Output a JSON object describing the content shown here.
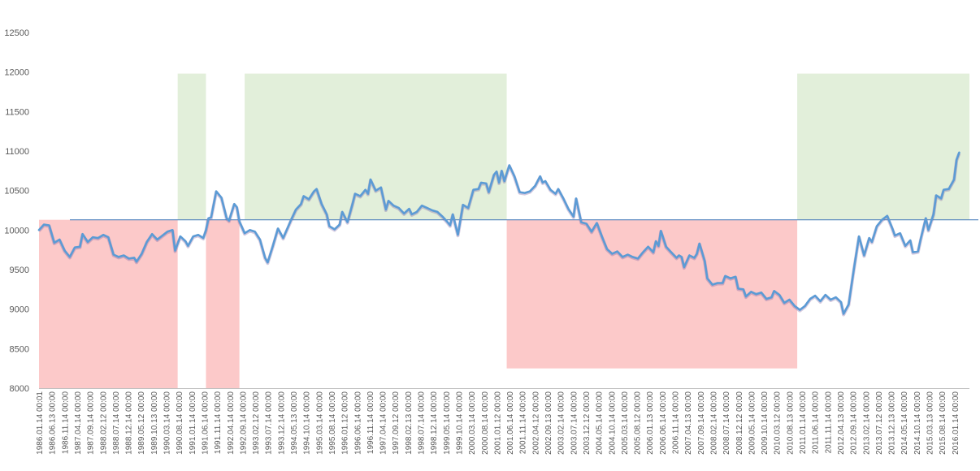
{
  "chart_data": {
    "type": "line",
    "title": "",
    "xlabel": "",
    "ylabel": "",
    "ylim": [
      8000,
      12500
    ],
    "yticks": [
      8000,
      8500,
      9000,
      9500,
      10000,
      10500,
      11000,
      11500,
      12000,
      12500
    ],
    "x_range": [
      "1986.01.14",
      "2016.03.14"
    ],
    "x_tick_labels": [
      "1986.01.14 00:01",
      "1986.06.13 00:00",
      "1986.11.14 00:00",
      "1987.04.14 00:00",
      "1987.09.14 00:00",
      "1988.02.12 00:00",
      "1988.07.14 00:00",
      "1988.12.14 00:00",
      "1989.05.12 00:00",
      "1989.10.13 00:00",
      "1990.03.14 00:00",
      "1990.08.14 00:00",
      "1991.01.14 00:00",
      "1991.06.14 00:00",
      "1991.11.14 00:00",
      "1992.04.14 00:00",
      "1992.09.14 00:00",
      "1993.02.12 00:00",
      "1993.07.14 00:00",
      "1993.12.14 00:00",
      "1994.05.13 00:00",
      "1994.10.14 00:00",
      "1995.03.14 00:00",
      "1995.08.14 00:00",
      "1996.01.12 00:00",
      "1996.06.14 00:00",
      "1996.11.14 00:00",
      "1997.04.14 00:00",
      "1997.09.12 00:00",
      "1998.02.13 00:00",
      "1998.07.14 00:00",
      "1998.12.14 00:00",
      "1999.05.14 00:00",
      "1999.10.14 00:00",
      "2000.03.14 00:00",
      "2000.08.14 00:00",
      "2001.01.12 00:00",
      "2001.06.14 00:00",
      "2001.11.14 00:00",
      "2002.04.12 00:00",
      "2002.09.13 00:00",
      "2003.02.14 00:00",
      "2003.07.14 00:00",
      "2003.12.12 00:00",
      "2004.05.14 00:00",
      "2004.10.14 00:00",
      "2005.03.14 00:00",
      "2005.08.12 00:00",
      "2006.01.13 00:00",
      "2006.06.14 00:00",
      "2006.11.14 00:00",
      "2007.04.13 00:00",
      "2007.09.14 00:00",
      "2008.02.14 00:00",
      "2008.07.14 00:00",
      "2008.12.12 00:00",
      "2009.05.14 00:00",
      "2009.10.14 00:00",
      "2010.03.12 00:00",
      "2010.08.13 00:00",
      "2011.01.14 00:00",
      "2011.06.14 00:00",
      "2011.11.14 00:00",
      "2012.04.13 00:00",
      "2012.09.14 00:00",
      "2013.02.14 00:00",
      "2013.07.12 00:00",
      "2013.12.13 00:00",
      "2014.05.14 00:00",
      "2014.10.14 00:00",
      "2015.03.13 00:00",
      "2015.08.14 00:00",
      "2016.01.14 00:00"
    ],
    "reference_line": {
      "y": 10130
    },
    "shaded_regions": [
      {
        "kind": "below",
        "x_start": "1986.01.14",
        "x_end": "1990.07.14",
        "y_from": 8000,
        "y_to": 10130
      },
      {
        "kind": "above",
        "x_start": "1990.07.14",
        "x_end": "1991.06.14",
        "y_from": 10130,
        "y_to": 11980
      },
      {
        "kind": "below",
        "x_start": "1991.06.14",
        "x_end": "1992.07.14",
        "y_from": 8000,
        "y_to": 10130
      },
      {
        "kind": "above",
        "x_start": "1992.09.14",
        "x_end": "2001.03.14",
        "y_from": 10130,
        "y_to": 11980
      },
      {
        "kind": "below",
        "x_start": "2001.03.14",
        "x_end": "2010.08.14",
        "y_from": 8250,
        "y_to": 10130
      },
      {
        "kind": "above",
        "x_start": "2010.08.14",
        "x_end": "2016.03.14",
        "y_from": 10130,
        "y_to": 11980
      }
    ],
    "series": [
      {
        "values": [
          [
            "1986.01.14",
            10000
          ],
          [
            "1986.03.14",
            10070
          ],
          [
            "1986.05.14",
            10060
          ],
          [
            "1986.07.14",
            9840
          ],
          [
            "1986.09.14",
            9880
          ],
          [
            "1986.11.14",
            9740
          ],
          [
            "1987.01.14",
            9660
          ],
          [
            "1987.03.14",
            9780
          ],
          [
            "1987.05.14",
            9790
          ],
          [
            "1987.06.14",
            9950
          ],
          [
            "1987.08.14",
            9850
          ],
          [
            "1987.10.14",
            9910
          ],
          [
            "1987.12.14",
            9900
          ],
          [
            "1988.02.14",
            9940
          ],
          [
            "1988.04.14",
            9910
          ],
          [
            "1988.06.14",
            9690
          ],
          [
            "1988.08.14",
            9660
          ],
          [
            "1988.10.14",
            9680
          ],
          [
            "1988.12.14",
            9640
          ],
          [
            "1989.02.14",
            9650
          ],
          [
            "1989.03.14",
            9600
          ],
          [
            "1989.05.14",
            9700
          ],
          [
            "1989.07.14",
            9850
          ],
          [
            "1989.09.14",
            9950
          ],
          [
            "1989.11.14",
            9880
          ],
          [
            "1990.01.14",
            9930
          ],
          [
            "1990.03.14",
            9980
          ],
          [
            "1990.05.14",
            10000
          ],
          [
            "1990.06.14",
            9740
          ],
          [
            "1990.08.14",
            9920
          ],
          [
            "1990.10.14",
            9860
          ],
          [
            "1990.11.14",
            9800
          ],
          [
            "1991.01.14",
            9920
          ],
          [
            "1991.03.14",
            9940
          ],
          [
            "1991.05.14",
            9900
          ],
          [
            "1991.06.14",
            10000
          ],
          [
            "1991.07.14",
            10150
          ],
          [
            "1991.08.14",
            10160
          ],
          [
            "1991.10.14",
            10490
          ],
          [
            "1991.12.14",
            10410
          ],
          [
            "1992.02.14",
            10150
          ],
          [
            "1992.03.14",
            10120
          ],
          [
            "1992.05.14",
            10330
          ],
          [
            "1992.06.14",
            10290
          ],
          [
            "1992.07.14",
            10110
          ],
          [
            "1992.09.14",
            9960
          ],
          [
            "1992.11.14",
            10000
          ],
          [
            "1993.01.14",
            9980
          ],
          [
            "1993.03.14",
            9880
          ],
          [
            "1993.05.14",
            9650
          ],
          [
            "1993.06.14",
            9590
          ],
          [
            "1993.08.14",
            9800
          ],
          [
            "1993.10.14",
            10020
          ],
          [
            "1993.12.14",
            9900
          ],
          [
            "1994.02.14",
            10050
          ],
          [
            "1994.03.14",
            10120
          ],
          [
            "1994.05.14",
            10260
          ],
          [
            "1994.07.14",
            10330
          ],
          [
            "1994.08.14",
            10430
          ],
          [
            "1994.10.14",
            10390
          ],
          [
            "1994.12.14",
            10490
          ],
          [
            "1995.01.14",
            10520
          ],
          [
            "1995.03.14",
            10330
          ],
          [
            "1995.05.14",
            10200
          ],
          [
            "1995.06.14",
            10050
          ],
          [
            "1995.08.14",
            10010
          ],
          [
            "1995.10.14",
            10070
          ],
          [
            "1995.11.14",
            10230
          ],
          [
            "1996.01.14",
            10100
          ],
          [
            "1996.03.14",
            10330
          ],
          [
            "1996.04.14",
            10460
          ],
          [
            "1996.06.14",
            10430
          ],
          [
            "1996.08.14",
            10510
          ],
          [
            "1996.09.14",
            10460
          ],
          [
            "1996.10.14",
            10640
          ],
          [
            "1996.12.14",
            10500
          ],
          [
            "1997.02.14",
            10540
          ],
          [
            "1997.04.14",
            10260
          ],
          [
            "1997.05.14",
            10370
          ],
          [
            "1997.07.14",
            10310
          ],
          [
            "1997.09.14",
            10280
          ],
          [
            "1997.11.14",
            10210
          ],
          [
            "1998.01.14",
            10270
          ],
          [
            "1998.02.14",
            10200
          ],
          [
            "1998.04.14",
            10230
          ],
          [
            "1998.06.14",
            10310
          ],
          [
            "1998.08.14",
            10280
          ],
          [
            "1998.10.14",
            10250
          ],
          [
            "1998.12.14",
            10230
          ],
          [
            "1999.02.14",
            10170
          ],
          [
            "1999.04.14",
            10100
          ],
          [
            "1999.05.14",
            10060
          ],
          [
            "1999.06.14",
            10200
          ],
          [
            "1999.08.14",
            9940
          ],
          [
            "1999.10.14",
            10320
          ],
          [
            "1999.12.14",
            10280
          ],
          [
            "2000.02.14",
            10510
          ],
          [
            "2000.04.14",
            10520
          ],
          [
            "2000.05.14",
            10600
          ],
          [
            "2000.07.14",
            10590
          ],
          [
            "2000.08.14",
            10480
          ],
          [
            "2000.10.14",
            10700
          ],
          [
            "2000.11.14",
            10740
          ],
          [
            "2000.12.14",
            10600
          ],
          [
            "2001.01.14",
            10750
          ],
          [
            "2001.02.14",
            10620
          ],
          [
            "2001.04.14",
            10820
          ],
          [
            "2001.06.14",
            10680
          ],
          [
            "2001.08.14",
            10480
          ],
          [
            "2001.10.14",
            10470
          ],
          [
            "2001.12.14",
            10490
          ],
          [
            "2002.02.14",
            10560
          ],
          [
            "2002.04.14",
            10680
          ],
          [
            "2002.05.14",
            10600
          ],
          [
            "2002.06.14",
            10620
          ],
          [
            "2002.08.14",
            10510
          ],
          [
            "2002.10.14",
            10460
          ],
          [
            "2002.11.14",
            10520
          ],
          [
            "2003.01.14",
            10400
          ],
          [
            "2003.03.14",
            10270
          ],
          [
            "2003.05.14",
            10170
          ],
          [
            "2003.06.14",
            10400
          ],
          [
            "2003.08.14",
            10100
          ],
          [
            "2003.10.14",
            10080
          ],
          [
            "2003.12.14",
            9980
          ],
          [
            "2004.02.14",
            10090
          ],
          [
            "2004.04.14",
            9920
          ],
          [
            "2004.06.14",
            9760
          ],
          [
            "2004.08.14",
            9700
          ],
          [
            "2004.10.14",
            9730
          ],
          [
            "2004.12.14",
            9660
          ],
          [
            "2005.02.14",
            9690
          ],
          [
            "2005.04.14",
            9660
          ],
          [
            "2005.06.14",
            9640
          ],
          [
            "2005.08.14",
            9720
          ],
          [
            "2005.10.14",
            9790
          ],
          [
            "2005.12.14",
            9720
          ],
          [
            "2006.01.14",
            9860
          ],
          [
            "2006.02.14",
            9800
          ],
          [
            "2006.03.14",
            9990
          ],
          [
            "2006.05.14",
            9790
          ],
          [
            "2006.07.14",
            9720
          ],
          [
            "2006.09.14",
            9650
          ],
          [
            "2006.10.14",
            9680
          ],
          [
            "2006.11.14",
            9660
          ],
          [
            "2006.12.14",
            9530
          ],
          [
            "2007.02.14",
            9680
          ],
          [
            "2007.04.14",
            9650
          ],
          [
            "2007.05.14",
            9700
          ],
          [
            "2007.06.14",
            9830
          ],
          [
            "2007.08.14",
            9610
          ],
          [
            "2007.09.14",
            9390
          ],
          [
            "2007.11.14",
            9310
          ],
          [
            "2008.01.14",
            9330
          ],
          [
            "2008.03.14",
            9330
          ],
          [
            "2008.04.14",
            9420
          ],
          [
            "2008.06.14",
            9390
          ],
          [
            "2008.08.14",
            9410
          ],
          [
            "2008.09.14",
            9260
          ],
          [
            "2008.11.14",
            9250
          ],
          [
            "2008.12.14",
            9160
          ],
          [
            "2009.02.14",
            9220
          ],
          [
            "2009.04.14",
            9190
          ],
          [
            "2009.06.14",
            9210
          ],
          [
            "2009.08.14",
            9130
          ],
          [
            "2009.10.14",
            9150
          ],
          [
            "2009.11.14",
            9230
          ],
          [
            "2010.01.14",
            9180
          ],
          [
            "2010.03.14",
            9080
          ],
          [
            "2010.05.14",
            9120
          ],
          [
            "2010.07.14",
            9040
          ],
          [
            "2010.09.14",
            8990
          ],
          [
            "2010.11.14",
            9040
          ],
          [
            "2011.01.14",
            9130
          ],
          [
            "2011.03.14",
            9170
          ],
          [
            "2011.05.14",
            9100
          ],
          [
            "2011.07.14",
            9180
          ],
          [
            "2011.09.14",
            9120
          ],
          [
            "2011.11.14",
            9150
          ],
          [
            "2012.01.14",
            9090
          ],
          [
            "2012.02.14",
            8940
          ],
          [
            "2012.04.14",
            9060
          ],
          [
            "2012.06.14",
            9500
          ],
          [
            "2012.08.14",
            9920
          ],
          [
            "2012.10.14",
            9680
          ],
          [
            "2012.12.14",
            9900
          ],
          [
            "2013.01.14",
            9850
          ],
          [
            "2013.03.14",
            10050
          ],
          [
            "2013.05.14",
            10130
          ],
          [
            "2013.07.14",
            10180
          ],
          [
            "2013.09.14",
            10020
          ],
          [
            "2013.10.14",
            9930
          ],
          [
            "2013.12.14",
            9960
          ],
          [
            "2014.02.14",
            9800
          ],
          [
            "2014.04.14",
            9870
          ],
          [
            "2014.05.14",
            9720
          ],
          [
            "2014.07.14",
            9730
          ],
          [
            "2014.08.14",
            9880
          ],
          [
            "2014.10.14",
            10150
          ],
          [
            "2014.11.14",
            10000
          ],
          [
            "2015.01.14",
            10200
          ],
          [
            "2015.02.14",
            10440
          ],
          [
            "2015.04.14",
            10400
          ],
          [
            "2015.05.14",
            10510
          ],
          [
            "2015.07.14",
            10520
          ],
          [
            "2015.09.14",
            10640
          ],
          [
            "2015.10.14",
            10890
          ],
          [
            "2015.11.14",
            10980
          ]
        ]
      }
    ]
  },
  "colors": {
    "line": "#5b9bd5",
    "line_shadow": "#8064a2",
    "reference_line": "#4f81bd",
    "green_fill": "#e2efda",
    "red_fill": "#fcc9c9",
    "axis": "#bfbfbf",
    "tick_text": "#595959"
  }
}
